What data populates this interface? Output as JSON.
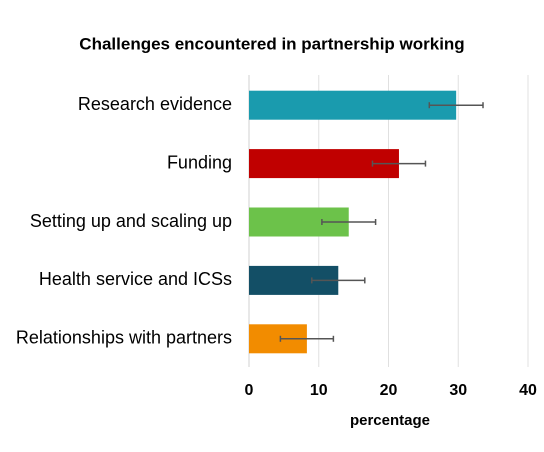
{
  "chart_data": {
    "type": "barh",
    "title": "Challenges encountered in partnership working",
    "x_label": "percentage",
    "categories": [
      "Research evidence",
      "Funding",
      "Setting up and scaling up",
      "Health service and ICSs",
      "Relationships with partners"
    ],
    "values": [
      29.7,
      21.5,
      14.3,
      12.8,
      8.3
    ],
    "errors": [
      3.85,
      3.8,
      3.85,
      3.8,
      3.8
    ],
    "colors": [
      "#1a9bae",
      "#c00000",
      "#6cc24a",
      "#134f66",
      "#f28c00"
    ],
    "xlim": [
      0,
      40
    ],
    "xticks": [
      0,
      10,
      20,
      30,
      40
    ],
    "grid": true
  }
}
